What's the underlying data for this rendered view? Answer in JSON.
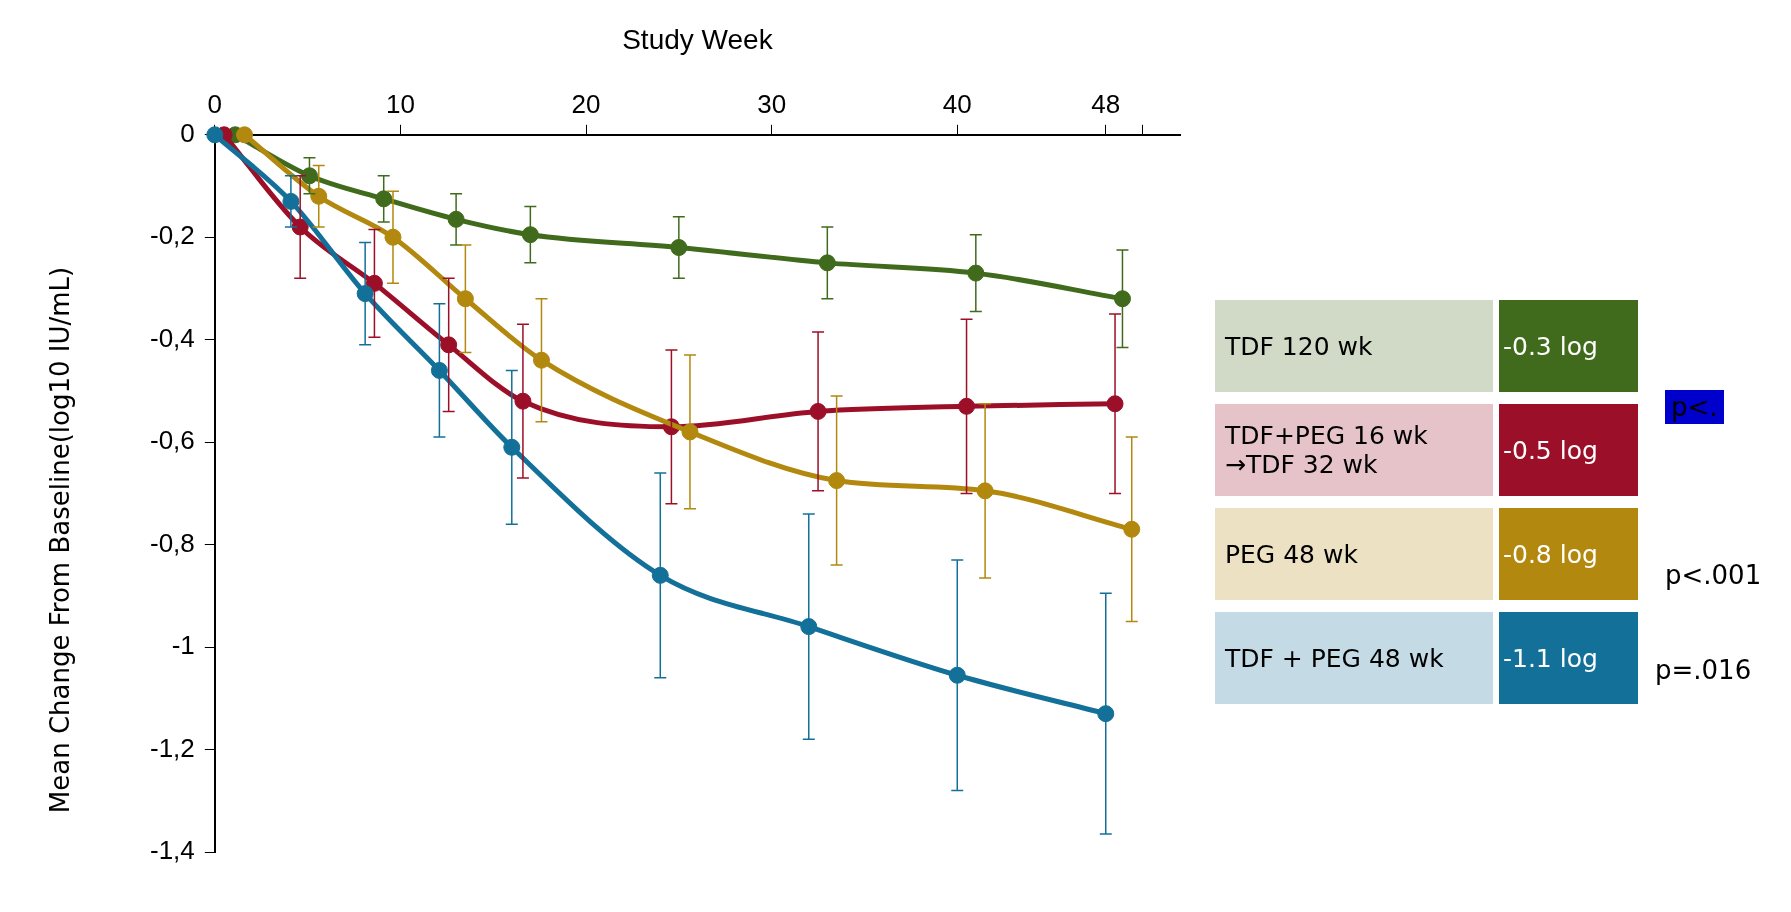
{
  "chart_data": {
    "type": "line",
    "xlabel": "Study Week",
    "ylabel": "Mean Change From Baseline(log10 IU/mL)",
    "xlim": [
      0,
      52
    ],
    "xticks": [
      0,
      10,
      20,
      30,
      40,
      {
        "value": 48,
        "label": "48"
      },
      {
        "value": 50,
        "label": null
      }
    ],
    "ylim": [
      -1.4,
      0
    ],
    "yticks": [
      {
        "value": -1.4,
        "label": "-1,4"
      },
      {
        "value": -1.2,
        "label": "-1,2"
      },
      {
        "value": -1,
        "label": "-1"
      },
      {
        "value": -0.8,
        "label": "-0,8"
      },
      {
        "value": -0.6,
        "label": "-0,6"
      },
      {
        "value": -0.4,
        "label": "-0,4"
      },
      {
        "value": -0.2,
        "label": "-0,2"
      },
      0
    ],
    "grid": false,
    "legend": "right",
    "marker": "circle",
    "line_style": "solid",
    "series": [
      {
        "name": "TDF 120 wk",
        "color": "#416b1c",
        "x": [
          1.1,
          5.1,
          9.1,
          13,
          17,
          25,
          33,
          41,
          48.9
        ],
        "values": [
          0,
          -0.08,
          -0.125,
          -0.165,
          -0.195,
          -0.22,
          -0.25,
          -0.27,
          -0.32
        ],
        "errors": [
          null,
          0.035,
          0.045,
          0.05,
          0.055,
          0.06,
          0.07,
          0.075,
          0.095
        ]
      },
      {
        "name": "TDF+PEG 16 wk\n→TDF 32 wk",
        "color": "#9b1028",
        "x": [
          0.5,
          4.6,
          8.6,
          12.6,
          16.6,
          24.6,
          32.5,
          40.5,
          48.5
        ],
        "values": [
          0,
          -0.18,
          -0.29,
          -0.41,
          -0.52,
          -0.57,
          -0.54,
          -0.53,
          -0.525
        ],
        "errors": [
          null,
          0.1,
          0.105,
          0.13,
          0.15,
          0.15,
          0.155,
          0.17,
          0.175
        ]
      },
      {
        "name": "PEG 48 wk",
        "color": "#b3880e",
        "x": [
          1.6,
          5.6,
          9.6,
          13.5,
          17.6,
          25.6,
          33.5,
          41.5,
          49.4
        ],
        "values": [
          0,
          -0.12,
          -0.2,
          -0.32,
          -0.44,
          -0.58,
          -0.675,
          -0.695,
          -0.77
        ],
        "errors": [
          null,
          0.06,
          0.09,
          0.105,
          0.12,
          0.15,
          0.165,
          0.17,
          0.18
        ]
      },
      {
        "name": "TDF + PEG 48 wk",
        "color": "#137099",
        "x": [
          0,
          4.1,
          8.1,
          12.1,
          16,
          24,
          32,
          40,
          48
        ],
        "values": [
          0,
          -0.13,
          -0.31,
          -0.46,
          -0.61,
          -0.86,
          -0.96,
          -1.055,
          -1.13
        ],
        "errors": [
          null,
          0.05,
          0.1,
          0.13,
          0.15,
          0.2,
          0.22,
          0.225,
          0.235
        ]
      }
    ],
    "annotations": [
      "-0.3 log",
      "-0.5 log",
      "-0.8 log",
      "-1.1 log",
      "p<.001",
      "p=.016",
      "p<."
    ]
  }
}
